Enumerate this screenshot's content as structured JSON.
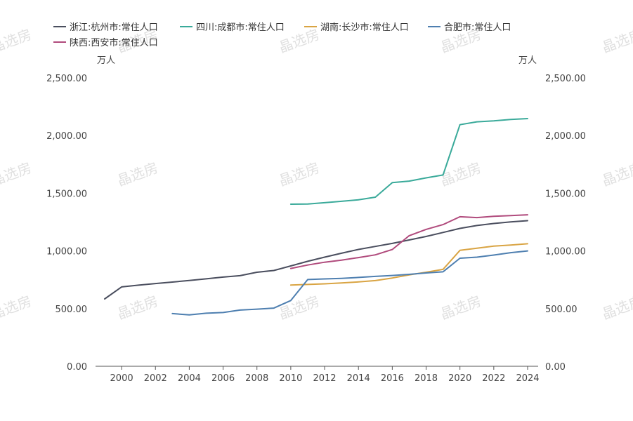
{
  "chart_data": {
    "type": "line",
    "title": "",
    "y_unit_left": "万人",
    "y_unit_right": "万人",
    "ylim": [
      0,
      2500
    ],
    "y_ticks": [
      "0.00",
      "500.00",
      "1,000.00",
      "1,500.00",
      "2,000.00",
      "2,500.00"
    ],
    "x_range": [
      1999,
      2024
    ],
    "x_ticks": [
      "2000",
      "2002",
      "2004",
      "2006",
      "2008",
      "2010",
      "2012",
      "2014",
      "2016",
      "2018",
      "2020",
      "2022",
      "2024"
    ],
    "grid": false,
    "legend_position": "top-left",
    "series": [
      {
        "name": "浙江:杭州市:常住人口",
        "color": "#4a4e5e",
        "x": [
          1999,
          2000,
          2001,
          2002,
          2003,
          2004,
          2005,
          2006,
          2007,
          2008,
          2009,
          2010,
          2011,
          2012,
          2013,
          2014,
          2015,
          2016,
          2017,
          2018,
          2019,
          2020,
          2021,
          2022,
          2023,
          2024
        ],
        "values": [
          584,
          688,
          703,
          717,
          730,
          744,
          758,
          773,
          785,
          815,
          830,
          870,
          910,
          946,
          980,
          1013,
          1039,
          1065,
          1095,
          1125,
          1160,
          1195,
          1220,
          1238,
          1252,
          1262
        ]
      },
      {
        "name": "四川:成都市:常住人口",
        "color": "#3aaa9a",
        "x": [
          2010,
          2011,
          2012,
          2013,
          2014,
          2015,
          2016,
          2017,
          2018,
          2019,
          2020,
          2021,
          2022,
          2023,
          2024
        ],
        "values": [
          1405,
          1407,
          1418,
          1430,
          1443,
          1466,
          1592,
          1605,
          1633,
          1658,
          2094,
          2119,
          2127,
          2140,
          2147
        ]
      },
      {
        "name": "湖南:长沙市:常住人口",
        "color": "#d9a443",
        "x": [
          2010,
          2011,
          2012,
          2013,
          2014,
          2015,
          2016,
          2017,
          2018,
          2019,
          2020,
          2021,
          2022,
          2023,
          2024
        ],
        "values": [
          704,
          709,
          715,
          722,
          731,
          743,
          765,
          792,
          815,
          840,
          1005,
          1024,
          1042,
          1051,
          1062
        ]
      },
      {
        "name": "合肥市:常住人口",
        "color": "#4e7fb0",
        "x": [
          2003,
          2004,
          2005,
          2006,
          2007,
          2008,
          2009,
          2010,
          2011,
          2012,
          2013,
          2014,
          2015,
          2016,
          2017,
          2018,
          2019,
          2020,
          2021,
          2022,
          2023,
          2024
        ],
        "values": [
          457,
          445,
          460,
          466,
          487,
          495,
          504,
          570,
          752,
          757,
          762,
          770,
          779,
          787,
          797,
          809,
          819,
          937,
          946,
          964,
          985,
          1000
        ]
      },
      {
        "name": "陕西:西安市:常住人口",
        "color": "#b04a7c",
        "x": [
          2010,
          2011,
          2012,
          2013,
          2014,
          2015,
          2016,
          2017,
          2018,
          2019,
          2020,
          2021,
          2022,
          2023,
          2024
        ],
        "values": [
          848,
          878,
          902,
          920,
          942,
          966,
          1012,
          1132,
          1187,
          1228,
          1296,
          1289,
          1300,
          1306,
          1313
        ]
      }
    ]
  },
  "watermark_text": "晶选房"
}
